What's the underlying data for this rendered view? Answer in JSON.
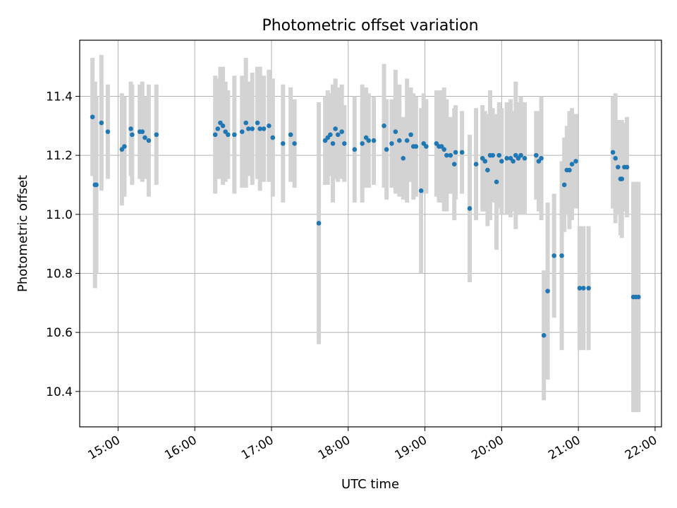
{
  "chart_data": {
    "type": "scatter",
    "title": "Photometric offset variation",
    "xlabel": "UTC time",
    "ylabel": "Photometric offset",
    "xlim": [
      "14:30",
      "22:05"
    ],
    "ylim": [
      10.28,
      11.59
    ],
    "x_ticks": [
      "15:00",
      "16:00",
      "17:00",
      "18:00",
      "19:00",
      "20:00",
      "21:00",
      "22:00"
    ],
    "y_ticks": [
      "10.4",
      "10.6",
      "10.8",
      "11.0",
      "11.2",
      "11.4"
    ],
    "grid": true,
    "colors": {
      "points": "#1f77b4",
      "errorbars": "#d3d3d3",
      "grid": "#b0b0b0"
    },
    "points": [
      {
        "x": "14:40",
        "y": 11.33,
        "err": 0.2
      },
      {
        "x": "14:42",
        "y": 11.1,
        "err": 0.35
      },
      {
        "x": "14:43",
        "y": 11.1,
        "err": 0.3
      },
      {
        "x": "14:47",
        "y": 11.31,
        "err": 0.23
      },
      {
        "x": "14:52",
        "y": 11.28,
        "err": 0.16
      },
      {
        "x": "15:03",
        "y": 11.22,
        "err": 0.19
      },
      {
        "x": "15:05",
        "y": 11.23,
        "err": 0.17
      },
      {
        "x": "15:10",
        "y": 11.29,
        "err": 0.16
      },
      {
        "x": "15:11",
        "y": 11.27,
        "err": 0.17
      },
      {
        "x": "15:17",
        "y": 11.28,
        "err": 0.16
      },
      {
        "x": "15:19",
        "y": 11.28,
        "err": 0.17
      },
      {
        "x": "15:21",
        "y": 11.26,
        "err": 0.14
      },
      {
        "x": "15:24",
        "y": 11.25,
        "err": 0.19
      },
      {
        "x": "15:30",
        "y": 11.27,
        "err": 0.17
      },
      {
        "x": "16:16",
        "y": 11.27,
        "err": 0.2
      },
      {
        "x": "16:18",
        "y": 11.29,
        "err": 0.17
      },
      {
        "x": "16:20",
        "y": 11.31,
        "err": 0.19
      },
      {
        "x": "16:22",
        "y": 11.3,
        "err": 0.2
      },
      {
        "x": "16:24",
        "y": 11.28,
        "err": 0.17
      },
      {
        "x": "16:26",
        "y": 11.27,
        "err": 0.15
      },
      {
        "x": "16:31",
        "y": 11.27,
        "err": 0.2
      },
      {
        "x": "16:37",
        "y": 11.28,
        "err": 0.19
      },
      {
        "x": "16:40",
        "y": 11.31,
        "err": 0.22
      },
      {
        "x": "16:42",
        "y": 11.29,
        "err": 0.16
      },
      {
        "x": "16:45",
        "y": 11.29,
        "err": 0.19
      },
      {
        "x": "16:49",
        "y": 11.31,
        "err": 0.19
      },
      {
        "x": "16:51",
        "y": 11.29,
        "err": 0.21
      },
      {
        "x": "16:54",
        "y": 11.29,
        "err": 0.18
      },
      {
        "x": "16:58",
        "y": 11.3,
        "err": 0.19
      },
      {
        "x": "17:01",
        "y": 11.26,
        "err": 0.2
      },
      {
        "x": "17:09",
        "y": 11.24,
        "err": 0.2
      },
      {
        "x": "17:15",
        "y": 11.27,
        "err": 0.16
      },
      {
        "x": "17:18",
        "y": 11.24,
        "err": 0.15
      },
      {
        "x": "17:37",
        "y": 10.97,
        "err": 0.41
      },
      {
        "x": "17:42",
        "y": 11.25,
        "err": 0.15
      },
      {
        "x": "17:44",
        "y": 11.26,
        "err": 0.16
      },
      {
        "x": "17:46",
        "y": 11.27,
        "err": 0.14
      },
      {
        "x": "17:48",
        "y": 11.24,
        "err": 0.2
      },
      {
        "x": "17:50",
        "y": 11.29,
        "err": 0.17
      },
      {
        "x": "17:52",
        "y": 11.27,
        "err": 0.16
      },
      {
        "x": "17:55",
        "y": 11.28,
        "err": 0.16
      },
      {
        "x": "17:57",
        "y": 11.24,
        "err": 0.13
      },
      {
        "x": "18:05",
        "y": 11.22,
        "err": 0.18
      },
      {
        "x": "18:11",
        "y": 11.24,
        "err": 0.2
      },
      {
        "x": "18:14",
        "y": 11.26,
        "err": 0.17
      },
      {
        "x": "18:16",
        "y": 11.25,
        "err": 0.16
      },
      {
        "x": "18:20",
        "y": 11.25,
        "err": 0.15
      },
      {
        "x": "18:28",
        "y": 11.3,
        "err": 0.21
      },
      {
        "x": "18:30",
        "y": 11.22,
        "err": 0.17
      },
      {
        "x": "18:34",
        "y": 11.24,
        "err": 0.15
      },
      {
        "x": "18:37",
        "y": 11.28,
        "err": 0.21
      },
      {
        "x": "18:40",
        "y": 11.25,
        "err": 0.19
      },
      {
        "x": "18:43",
        "y": 11.19,
        "err": 0.14
      },
      {
        "x": "18:46",
        "y": 11.25,
        "err": 0.21
      },
      {
        "x": "18:49",
        "y": 11.27,
        "err": 0.16
      },
      {
        "x": "18:51",
        "y": 11.23,
        "err": 0.18
      },
      {
        "x": "18:53",
        "y": 11.23,
        "err": 0.17
      },
      {
        "x": "18:57",
        "y": 11.08,
        "err": 0.28
      },
      {
        "x": "18:59",
        "y": 11.24,
        "err": 0.17
      },
      {
        "x": "19:01",
        "y": 11.23,
        "err": 0.16
      },
      {
        "x": "19:09",
        "y": 11.24,
        "err": 0.18
      },
      {
        "x": "19:11",
        "y": 11.23,
        "err": 0.19
      },
      {
        "x": "19:13",
        "y": 11.23,
        "err": 0.19
      },
      {
        "x": "19:15",
        "y": 11.22,
        "err": 0.21
      },
      {
        "x": "19:17",
        "y": 11.2,
        "err": 0.19
      },
      {
        "x": "19:20",
        "y": 11.2,
        "err": 0.13
      },
      {
        "x": "19:23",
        "y": 11.17,
        "err": 0.19
      },
      {
        "x": "19:24",
        "y": 11.21,
        "err": 0.16
      },
      {
        "x": "19:29",
        "y": 11.21,
        "err": 0.14
      },
      {
        "x": "19:35",
        "y": 11.02,
        "err": 0.25
      },
      {
        "x": "19:40",
        "y": 11.17,
        "err": 0.19
      },
      {
        "x": "19:45",
        "y": 11.19,
        "err": 0.18
      },
      {
        "x": "19:47",
        "y": 11.18,
        "err": 0.17
      },
      {
        "x": "19:49",
        "y": 11.15,
        "err": 0.19
      },
      {
        "x": "19:51",
        "y": 11.2,
        "err": 0.22
      },
      {
        "x": "19:53",
        "y": 11.2,
        "err": 0.16
      },
      {
        "x": "19:56",
        "y": 11.11,
        "err": 0.23
      },
      {
        "x": "19:58",
        "y": 11.2,
        "err": 0.18
      },
      {
        "x": "20:00",
        "y": 11.18,
        "err": 0.18
      },
      {
        "x": "20:04",
        "y": 11.19,
        "err": 0.19
      },
      {
        "x": "20:07",
        "y": 11.19,
        "err": 0.2
      },
      {
        "x": "20:09",
        "y": 11.18,
        "err": 0.17
      },
      {
        "x": "20:11",
        "y": 11.2,
        "err": 0.25
      },
      {
        "x": "20:13",
        "y": 11.19,
        "err": 0.19
      },
      {
        "x": "20:15",
        "y": 11.2,
        "err": 0.2
      },
      {
        "x": "20:18",
        "y": 11.19,
        "err": 0.19
      },
      {
        "x": "20:27",
        "y": 11.2,
        "err": 0.15
      },
      {
        "x": "20:29",
        "y": 11.18,
        "err": 0.17
      },
      {
        "x": "20:31",
        "y": 11.19,
        "err": 0.21
      },
      {
        "x": "20:33",
        "y": 10.59,
        "err": 0.22
      },
      {
        "x": "20:36",
        "y": 10.74,
        "err": 0.3
      },
      {
        "x": "20:41",
        "y": 10.86,
        "err": 0.21
      },
      {
        "x": "20:47",
        "y": 10.86,
        "err": 0.32
      },
      {
        "x": "20:49",
        "y": 11.1,
        "err": 0.16
      },
      {
        "x": "20:51",
        "y": 11.15,
        "err": 0.15
      },
      {
        "x": "20:53",
        "y": 11.15,
        "err": 0.2
      },
      {
        "x": "20:55",
        "y": 11.17,
        "err": 0.19
      },
      {
        "x": "20:58",
        "y": 11.18,
        "err": 0.16
      },
      {
        "x": "21:01",
        "y": 10.75,
        "err": 0.21
      },
      {
        "x": "21:04",
        "y": 10.75,
        "err": 0.21
      },
      {
        "x": "21:08",
        "y": 10.75,
        "err": 0.21
      },
      {
        "x": "21:27",
        "y": 11.21,
        "err": 0.19
      },
      {
        "x": "21:29",
        "y": 11.19,
        "err": 0.22
      },
      {
        "x": "21:31",
        "y": 11.16,
        "err": 0.16
      },
      {
        "x": "21:33",
        "y": 11.12,
        "err": 0.19
      },
      {
        "x": "21:34",
        "y": 11.12,
        "err": 0.2
      },
      {
        "x": "21:36",
        "y": 11.16,
        "err": 0.15
      },
      {
        "x": "21:38",
        "y": 11.16,
        "err": 0.17
      },
      {
        "x": "21:43",
        "y": 10.72,
        "err": 0.39
      },
      {
        "x": "21:45",
        "y": 10.72,
        "err": 0.39
      },
      {
        "x": "21:47",
        "y": 10.72,
        "err": 0.39
      }
    ]
  }
}
